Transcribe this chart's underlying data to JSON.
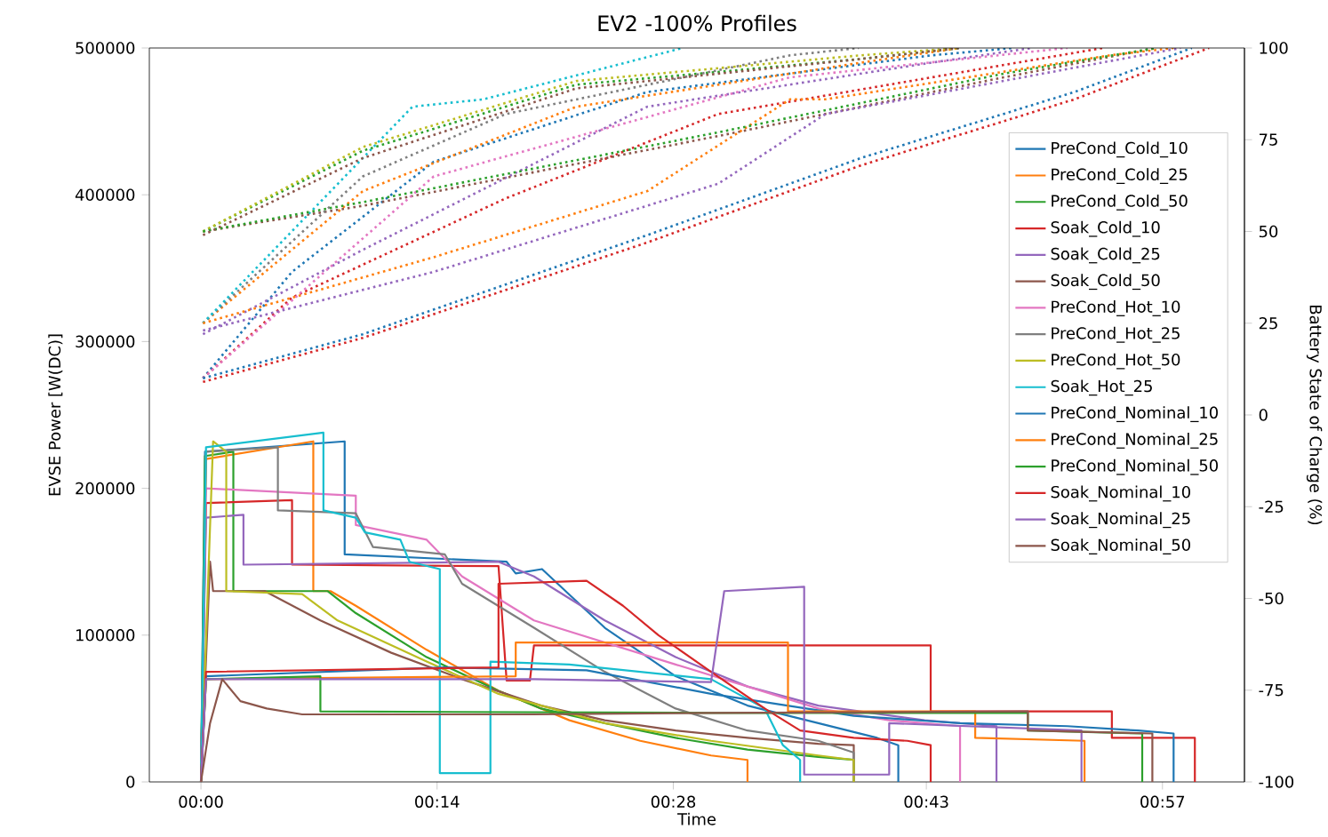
{
  "chart_data": {
    "type": "line",
    "title": "EV2 -100% Profiles",
    "xlabel": "Time",
    "ylabel": "EVSE Power [W(DC)]",
    "y2label": "Battery State of Charge (%)",
    "xlim": [
      -0.051,
      1.031
    ],
    "xticks": [
      {
        "value": 0,
        "label": "00:00"
      },
      {
        "value": 0.2333,
        "label": "00:14"
      },
      {
        "value": 0.4667,
        "label": "00:28"
      },
      {
        "value": 0.7167,
        "label": "00:43"
      },
      {
        "value": 0.95,
        "label": "00:57"
      }
    ],
    "ylim": [
      0,
      500000
    ],
    "yticks": [
      0,
      100000,
      200000,
      300000,
      400000,
      500000
    ],
    "y2lim": [
      -100,
      100
    ],
    "y2ticks": [
      -100,
      -75,
      -50,
      -25,
      0,
      25,
      50,
      75,
      100
    ],
    "legend": "top right",
    "line_style": "solid",
    "series": [
      {
        "name": "PreCond_Cold_10",
        "color": "#1f77b4",
        "x": [
          0,
          0.004,
          0.142,
          0.142,
          0.302,
          0.311,
          0.337,
          0.399,
          0.469,
          0.54,
          0.61,
          0.668,
          0.689,
          0.689
        ],
        "values": [
          0,
          225000,
          232000,
          155000,
          150000,
          142000,
          145000,
          105000,
          72000,
          52000,
          40000,
          30000,
          25000,
          0
        ]
      },
      {
        "name": "PreCond_Cold_25",
        "color": "#ff7f0e",
        "x": [
          0,
          0.005,
          0.111,
          0.111,
          0.128,
          0.153,
          0.223,
          0.294,
          0.364,
          0.434,
          0.504,
          0.54,
          0.54
        ],
        "values": [
          0,
          220000,
          232000,
          130000,
          130000,
          120000,
          90000,
          62000,
          42000,
          28000,
          18000,
          15000,
          0
        ]
      },
      {
        "name": "PreCond_Cold_50",
        "color": "#2ca02c",
        "x": [
          0,
          0.004,
          0.032,
          0.032,
          0.125,
          0.153,
          0.223,
          0.294,
          0.336,
          0.399,
          0.469,
          0.54,
          0.61,
          0.645,
          0.645
        ],
        "values": [
          0,
          222000,
          225000,
          130000,
          130000,
          115000,
          85000,
          62000,
          50000,
          40000,
          30000,
          22000,
          17000,
          15000,
          0
        ]
      },
      {
        "name": "Soak_Cold_10",
        "color": "#d62728",
        "x": [
          0,
          0.005,
          0.09,
          0.09,
          0.294,
          0.302,
          0.325,
          0.329,
          0.721,
          0.721,
          0.9,
          0.9,
          0.982,
          0.982
        ],
        "values": [
          0,
          190000,
          192000,
          148000,
          147000,
          69000,
          69000,
          93000,
          93000,
          48000,
          48000,
          30000,
          30000,
          0
        ]
      },
      {
        "name": "Soak_Cold_25",
        "color": "#9467bd",
        "x": [
          0,
          0.005,
          0.042,
          0.042,
          0.294,
          0.329,
          0.399,
          0.469,
          0.54,
          0.61,
          0.715,
          0.786,
          0.786
        ],
        "values": [
          0,
          180000,
          182000,
          148000,
          150000,
          140000,
          110000,
          85000,
          65000,
          52000,
          42000,
          38000,
          0
        ]
      },
      {
        "name": "Soak_Cold_50",
        "color": "#8c564b",
        "x": [
          0,
          0.009,
          0.012,
          0.063,
          0.118,
          0.188,
          0.258,
          0.336,
          0.399,
          0.469,
          0.54,
          0.61,
          0.645,
          0.645
        ],
        "values": [
          0,
          150000,
          130000,
          130000,
          110000,
          88000,
          70000,
          52000,
          42000,
          35000,
          30000,
          26000,
          25000,
          0
        ]
      },
      {
        "name": "PreCond_Hot_10",
        "color": "#e377c2",
        "x": [
          0,
          0.005,
          0.153,
          0.153,
          0.223,
          0.258,
          0.329,
          0.399,
          0.469,
          0.54,
          0.61,
          0.68,
          0.75,
          0.75
        ],
        "values": [
          0,
          200000,
          195000,
          175000,
          165000,
          140000,
          110000,
          95000,
          80000,
          65000,
          50000,
          42000,
          38000,
          0
        ]
      },
      {
        "name": "PreCond_Hot_25",
        "color": "#7f7f7f",
        "x": [
          0,
          0.005,
          0.076,
          0.076,
          0.153,
          0.17,
          0.241,
          0.258,
          0.329,
          0.399,
          0.469,
          0.54,
          0.61,
          0.645,
          0.645
        ],
        "values": [
          0,
          225000,
          228000,
          185000,
          183000,
          160000,
          155000,
          135000,
          105000,
          75000,
          50000,
          35000,
          28000,
          20000,
          0
        ]
      },
      {
        "name": "PreCond_Hot_50",
        "color": "#bcbd22",
        "x": [
          0,
          0.012,
          0.025,
          0.025,
          0.1,
          0.135,
          0.223,
          0.294,
          0.399,
          0.504,
          0.61,
          0.645,
          0.645
        ],
        "values": [
          0,
          232000,
          225000,
          130000,
          128000,
          110000,
          82000,
          60000,
          40000,
          28000,
          18000,
          15000,
          0
        ]
      },
      {
        "name": "Soak_Hot_25",
        "color": "#17becf",
        "x": [
          0,
          0.005,
          0.121,
          0.121,
          0.153,
          0.162,
          0.197,
          0.206,
          0.236,
          0.236,
          0.286,
          0.286,
          0.364,
          0.434,
          0.504,
          0.557,
          0.575,
          0.592,
          0.592
        ],
        "values": [
          0,
          228000,
          238000,
          185000,
          180000,
          170000,
          165000,
          150000,
          145000,
          6000,
          6000,
          82000,
          80000,
          75000,
          70000,
          50000,
          25000,
          15000,
          0
        ]
      },
      {
        "name": "PreCond_Nominal_10",
        "color": "#1f77b4",
        "x": [
          0,
          0.005,
          0.241,
          0.381,
          0.504,
          0.645,
          0.75,
          0.856,
          0.926,
          0.961,
          0.961
        ],
        "values": [
          0,
          72000,
          78000,
          76000,
          60000,
          45000,
          40000,
          38000,
          35000,
          33000,
          0
        ]
      },
      {
        "name": "PreCond_Nominal_25",
        "color": "#ff7f0e",
        "x": [
          0,
          0.005,
          0.311,
          0.311,
          0.58,
          0.58,
          0.765,
          0.765,
          0.873,
          0.873
        ],
        "values": [
          0,
          70000,
          72000,
          95000,
          95000,
          48000,
          48000,
          30000,
          28000,
          0
        ]
      },
      {
        "name": "PreCond_Nominal_50",
        "color": "#2ca02c",
        "x": [
          0,
          0.005,
          0.118,
          0.118,
          0.504,
          0.817,
          0.817,
          0.93,
          0.93
        ],
        "values": [
          0,
          70000,
          72000,
          48000,
          47000,
          47000,
          35000,
          33000,
          0
        ]
      },
      {
        "name": "Soak_Nominal_10",
        "color": "#d62728",
        "x": [
          0,
          0.005,
          0.294,
          0.294,
          0.381,
          0.417,
          0.452,
          0.504,
          0.557,
          0.592,
          0.645,
          0.698,
          0.721,
          0.721
        ],
        "values": [
          0,
          75000,
          78000,
          135000,
          137000,
          120000,
          100000,
          75000,
          50000,
          35000,
          30000,
          28000,
          25000,
          0
        ]
      },
      {
        "name": "Soak_Nominal_25",
        "color": "#9467bd",
        "x": [
          0,
          0.005,
          0.329,
          0.504,
          0.517,
          0.596,
          0.596,
          0.68,
          0.68,
          0.87,
          0.87
        ],
        "values": [
          0,
          70000,
          70000,
          68000,
          130000,
          133000,
          5000,
          5000,
          40000,
          35000,
          0
        ]
      },
      {
        "name": "Soak_Nominal_50",
        "color": "#8c564b",
        "x": [
          0,
          0.009,
          0.021,
          0.039,
          0.065,
          0.1,
          0.329,
          0.504,
          0.817,
          0.817,
          0.94,
          0.94
        ],
        "values": [
          0,
          40000,
          70000,
          55000,
          50000,
          46000,
          46000,
          47000,
          48000,
          35000,
          33000,
          0
        ]
      },
      {
        "axis": "y2",
        "line_style": "dotted",
        "color": "#1f77b4",
        "x": [
          0.002,
          0.09,
          0.23,
          0.441,
          0.722,
          0.803
        ],
        "values": [
          10,
          39,
          69,
          88,
          98,
          100
        ]
      },
      {
        "axis": "y2",
        "line_style": "dotted",
        "color": "#ff7f0e",
        "x": [
          0.002,
          0.16,
          0.371,
          0.652,
          0.75
        ],
        "values": [
          25,
          61,
          84,
          96,
          100
        ]
      },
      {
        "axis": "y2",
        "line_style": "dotted",
        "color": "#2ca02c",
        "x": [
          0.002,
          0.16,
          0.371,
          0.652,
          0.75
        ],
        "values": [
          50,
          72,
          90,
          97,
          100
        ]
      },
      {
        "axis": "y2",
        "line_style": "dotted",
        "color": "#d62728",
        "x": [
          0.002,
          0.09,
          0.301,
          0.511,
          0.891
        ],
        "values": [
          10,
          32,
          59,
          82,
          100
        ]
      },
      {
        "axis": "y2",
        "line_style": "dotted",
        "color": "#9467bd",
        "x": [
          0.002,
          0.16,
          0.441,
          0.722,
          0.821
        ],
        "values": [
          22,
          45,
          84,
          96,
          100
        ]
      },
      {
        "axis": "y2",
        "line_style": "dotted",
        "color": "#8c564b",
        "x": [
          0.002,
          0.16,
          0.511,
          0.793,
          0.944
        ],
        "values": [
          50,
          57,
          76,
          92,
          100
        ]
      },
      {
        "axis": "y2",
        "line_style": "dotted",
        "color": "#e377c2",
        "x": [
          0.002,
          0.23,
          0.582,
          0.856
        ],
        "values": [
          10,
          65,
          92,
          100
        ]
      },
      {
        "axis": "y2",
        "line_style": "dotted",
        "color": "#7f7f7f",
        "x": [
          0.002,
          0.16,
          0.301,
          0.582,
          0.65
        ],
        "values": [
          25,
          65,
          82,
          98,
          100
        ]
      },
      {
        "axis": "y2",
        "line_style": "dotted",
        "color": "#bcbd22",
        "x": [
          0.002,
          0.16,
          0.371,
          0.652,
          0.75
        ],
        "values": [
          50,
          73,
          91,
          98,
          100
        ]
      },
      {
        "axis": "y2",
        "line_style": "dotted",
        "color": "#17becf",
        "x": [
          0.002,
          0.209,
          0.279,
          0.476
        ],
        "values": [
          25,
          84,
          86,
          100
        ]
      },
      {
        "axis": "y2",
        "line_style": "dotted",
        "color": "#1f77b4",
        "x": [
          0.002,
          0.16,
          0.441,
          0.652,
          0.863,
          0.979
        ],
        "values": [
          10,
          22,
          49,
          70,
          88,
          100
        ]
      },
      {
        "axis": "y2",
        "line_style": "dotted",
        "color": "#ff7f0e",
        "x": [
          0.002,
          0.23,
          0.441,
          0.582,
          0.617,
          0.898,
          0.961
        ],
        "values": [
          25,
          43,
          61,
          86,
          86,
          98,
          100
        ]
      },
      {
        "axis": "y2",
        "line_style": "dotted",
        "color": "#2ca02c",
        "x": [
          0.002,
          0.16,
          0.511,
          0.793,
          0.944
        ],
        "values": [
          50,
          58,
          77,
          93,
          100
        ]
      },
      {
        "axis": "y2",
        "line_style": "dotted",
        "color": "#d62728",
        "x": [
          0.002,
          0.16,
          0.441,
          0.652,
          0.863,
          0.996
        ],
        "values": [
          9,
          21,
          47,
          68,
          86,
          100
        ]
      },
      {
        "axis": "y2",
        "line_style": "dotted",
        "color": "#9467bd",
        "x": [
          0.002,
          0.23,
          0.511,
          0.617,
          0.968
        ],
        "values": [
          23,
          39,
          63,
          82,
          100
        ]
      },
      {
        "axis": "y2",
        "line_style": "dotted",
        "color": "#8c564b",
        "x": [
          0.002,
          0.16,
          0.371,
          0.652,
          0.75
        ],
        "values": [
          49,
          70,
          89,
          97,
          100
        ]
      }
    ]
  }
}
